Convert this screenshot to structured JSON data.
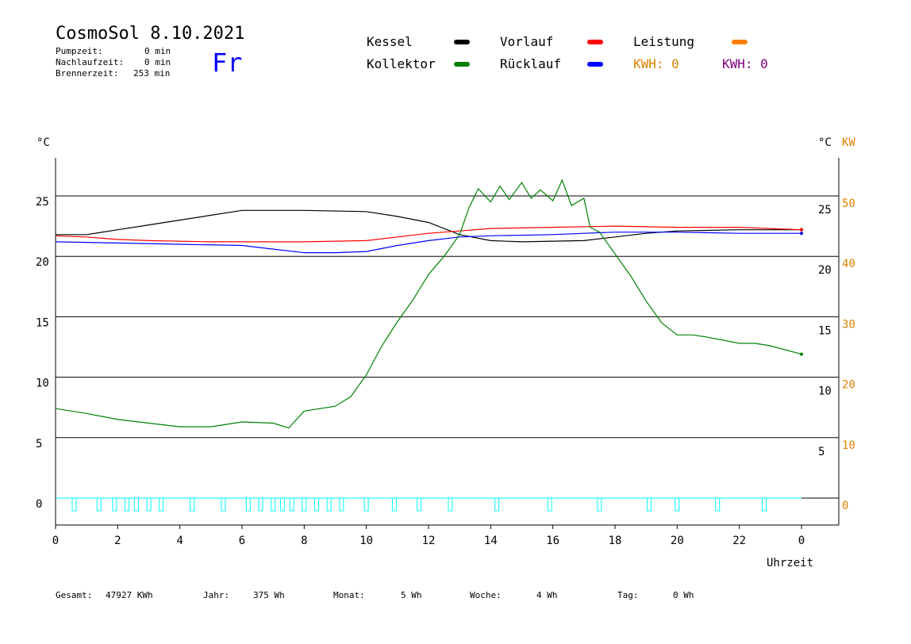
{
  "header": {
    "title": "CosmoSol 8.10.2021",
    "day": "Fr",
    "stats": [
      {
        "label": "Pumpzeit:",
        "value": "0 min"
      },
      {
        "label": "Nachlaufzeit:",
        "value": "0 min"
      },
      {
        "label": "Brennerzeit:",
        "value": "253 min"
      }
    ]
  },
  "legend": {
    "kessel": "Kessel",
    "vorlauf": "Vorlauf",
    "leistung": "Leistung",
    "kollektor": "Kollektor",
    "ruecklauf": "Rücklauf",
    "kwh1": "KWH: 0",
    "kwh2": "KWH: 0"
  },
  "axes": {
    "left_unit": "°C",
    "right_unit": "°C",
    "right_unit2": "KW",
    "x_label": "Uhrzeit"
  },
  "footer": {
    "gesamt_label": "Gesamt:",
    "gesamt_value": "47927 KWh",
    "jahr_label": "Jahr:",
    "jahr_value": "375 Wh",
    "monat_label": "Monat:",
    "monat_value": "5 Wh",
    "woche_label": "Woche:",
    "woche_value": "4 Wh",
    "tag_label": "Tag:",
    "tag_value": "0 Wh"
  },
  "colors": {
    "kessel": "#000000",
    "vorlauf": "#ff0000",
    "leistung": "#ff8000",
    "kollektor": "#008000",
    "ruecklauf": "#0000ff",
    "kwh2": "#800080",
    "pump": "#00ffff",
    "orange_text": "#e08000"
  },
  "chart_data": {
    "type": "line",
    "xlabel": "Uhrzeit",
    "ylabel": "°C",
    "xlim": [
      0,
      24
    ],
    "ylim": [
      -2,
      28
    ],
    "x_tick_labels": [
      "0",
      "2",
      "4",
      "6",
      "8",
      "10",
      "12",
      "14",
      "16",
      "18",
      "20",
      "22",
      "0"
    ],
    "y_ticks_left": [
      0,
      5,
      10,
      15,
      20,
      25
    ],
    "y_ticks_right_c": [
      5,
      10,
      15,
      20,
      25
    ],
    "y_ticks_right_kw": [
      0,
      10,
      20,
      30,
      40,
      50
    ],
    "gridlines_y": [
      0,
      5,
      10,
      15,
      20,
      25
    ],
    "series": [
      {
        "name": "Kessel",
        "color": "#000000",
        "points": [
          [
            0,
            21.8
          ],
          [
            1,
            21.8
          ],
          [
            2,
            22.2
          ],
          [
            3,
            22.6
          ],
          [
            4,
            23.0
          ],
          [
            5,
            23.4
          ],
          [
            6,
            23.8
          ],
          [
            8,
            23.8
          ],
          [
            10,
            23.7
          ],
          [
            11,
            23.3
          ],
          [
            12,
            22.8
          ],
          [
            13,
            21.8
          ],
          [
            14,
            21.3
          ],
          [
            15,
            21.2
          ],
          [
            17,
            21.3
          ],
          [
            18,
            21.6
          ],
          [
            19,
            21.9
          ],
          [
            20,
            22.1
          ],
          [
            22,
            22.2
          ],
          [
            24,
            22.2
          ]
        ]
      },
      {
        "name": "Vorlauf",
        "color": "#ff0000",
        "points": [
          [
            0,
            21.7
          ],
          [
            1,
            21.6
          ],
          [
            2,
            21.4
          ],
          [
            3,
            21.3
          ],
          [
            5,
            21.2
          ],
          [
            7,
            21.2
          ],
          [
            8,
            21.2
          ],
          [
            10,
            21.3
          ],
          [
            11,
            21.6
          ],
          [
            12,
            21.9
          ],
          [
            13,
            22.1
          ],
          [
            14,
            22.3
          ],
          [
            16,
            22.4
          ],
          [
            18,
            22.5
          ],
          [
            20,
            22.4
          ],
          [
            22,
            22.4
          ],
          [
            24,
            22.2
          ]
        ]
      },
      {
        "name": "Rücklauf",
        "color": "#0000ff",
        "points": [
          [
            0,
            21.2
          ],
          [
            2,
            21.1
          ],
          [
            4,
            21.0
          ],
          [
            6,
            20.9
          ],
          [
            7,
            20.6
          ],
          [
            8,
            20.3
          ],
          [
            9,
            20.3
          ],
          [
            10,
            20.4
          ],
          [
            11,
            20.9
          ],
          [
            12,
            21.3
          ],
          [
            13,
            21.6
          ],
          [
            14,
            21.7
          ],
          [
            16,
            21.8
          ],
          [
            17,
            21.9
          ],
          [
            18,
            22.0
          ],
          [
            20,
            22.0
          ],
          [
            22,
            21.9
          ],
          [
            24,
            21.9
          ]
        ]
      },
      {
        "name": "Kollektor",
        "color": "#008000",
        "points": [
          [
            0,
            7.4
          ],
          [
            1,
            7.0
          ],
          [
            2,
            6.5
          ],
          [
            3,
            6.2
          ],
          [
            4,
            5.9
          ],
          [
            5,
            5.9
          ],
          [
            6,
            6.3
          ],
          [
            7,
            6.2
          ],
          [
            7.5,
            5.8
          ],
          [
            8,
            7.2
          ],
          [
            9,
            7.6
          ],
          [
            9.5,
            8.4
          ],
          [
            10,
            10.2
          ],
          [
            10.5,
            12.6
          ],
          [
            11,
            14.6
          ],
          [
            11.5,
            16.4
          ],
          [
            12,
            18.5
          ],
          [
            12.5,
            20.0
          ],
          [
            13,
            21.8
          ],
          [
            13.3,
            24.0
          ],
          [
            13.6,
            25.6
          ],
          [
            14,
            24.5
          ],
          [
            14.3,
            25.8
          ],
          [
            14.6,
            24.7
          ],
          [
            15,
            26.1
          ],
          [
            15.3,
            24.8
          ],
          [
            15.6,
            25.5
          ],
          [
            16,
            24.6
          ],
          [
            16.3,
            26.3
          ],
          [
            16.6,
            24.2
          ],
          [
            17,
            24.8
          ],
          [
            17.2,
            22.4
          ],
          [
            17.5,
            22.0
          ],
          [
            18,
            20.2
          ],
          [
            18.5,
            18.4
          ],
          [
            19,
            16.3
          ],
          [
            19.5,
            14.5
          ],
          [
            20,
            13.5
          ],
          [
            20.5,
            13.5
          ],
          [
            21,
            13.3
          ],
          [
            22,
            12.8
          ],
          [
            22.5,
            12.8
          ],
          [
            23,
            12.6
          ],
          [
            24,
            11.9
          ]
        ]
      }
    ],
    "pump_pulses_hours": [
      0.6,
      1.4,
      1.9,
      2.3,
      2.6,
      3.0,
      3.4,
      4.4,
      5.4,
      6.2,
      6.6,
      7.0,
      7.3,
      7.6,
      8.0,
      8.4,
      8.8,
      9.2,
      10.0,
      10.9,
      11.7,
      12.7,
      14.2,
      15.9,
      17.5,
      19.1,
      20.0,
      21.3,
      22.8
    ]
  }
}
